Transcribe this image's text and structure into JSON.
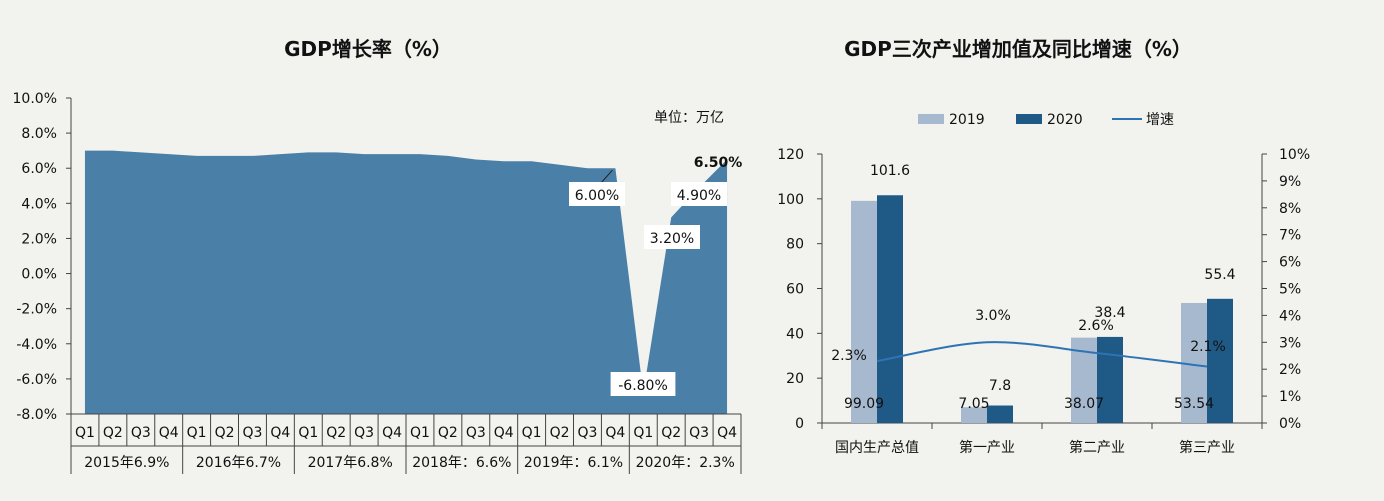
{
  "chart_data": [
    {
      "type": "area",
      "title": "GDP增长率（%）",
      "unit_note": "单位：万亿",
      "ylim": [
        -8.0,
        10.0
      ],
      "y_ticks": [
        "10.0%",
        "8.0%",
        "6.0%",
        "4.0%",
        "2.0%",
        "0.0%",
        "-2.0%",
        "-4.0%",
        "-6.0%",
        "-8.0%"
      ],
      "quarters": [
        "Q1",
        "Q2",
        "Q3",
        "Q4",
        "Q1",
        "Q2",
        "Q3",
        "Q4",
        "Q1",
        "Q2",
        "Q3",
        "Q4",
        "Q1",
        "Q2",
        "Q3",
        "Q4",
        "Q1",
        "Q2",
        "Q3",
        "Q4",
        "Q1",
        "Q2",
        "Q3",
        "Q4"
      ],
      "groups": [
        "2015年6.9%",
        "2016年6.7%",
        "2017年6.8%",
        "2018年：6.6%",
        "2019年：6.1%",
        "2020年：2.3%"
      ],
      "values": [
        7.0,
        7.0,
        6.9,
        6.8,
        6.7,
        6.7,
        6.7,
        6.8,
        6.9,
        6.9,
        6.8,
        6.8,
        6.8,
        6.7,
        6.5,
        6.4,
        6.4,
        6.2,
        6.0,
        6.0,
        -6.8,
        3.2,
        4.9,
        6.5
      ],
      "data_labels": [
        {
          "index": 19,
          "text": "6.00%"
        },
        {
          "index": 20,
          "text": "-6.80%"
        },
        {
          "index": 21,
          "text": "3.20%"
        },
        {
          "index": 22,
          "text": "4.90%"
        },
        {
          "index": 23,
          "text": "6.50%"
        }
      ],
      "colors": {
        "area": "#4a7fa8",
        "highlight_label": "#e0201c"
      }
    },
    {
      "type": "bar",
      "title": "GDP三次产业增加值及同比增速（%）",
      "categories": [
        "国内生产总值",
        "第一产业",
        "第二产业",
        "第三产业"
      ],
      "ylim": [
        0,
        120
      ],
      "y_ticks": [
        "120",
        "100",
        "80",
        "60",
        "40",
        "20",
        "0"
      ],
      "y2lim": [
        0,
        10
      ],
      "y2_ticks": [
        "10%",
        "9%",
        "8%",
        "7%",
        "6%",
        "5%",
        "4%",
        "3%",
        "2%",
        "1%",
        "0%"
      ],
      "series": [
        {
          "name": "2019",
          "values": [
            99.09,
            7.05,
            38.07,
            53.54
          ],
          "labels": [
            "99.09",
            "7.05",
            "38.07",
            "53.54"
          ],
          "color": "#a7b9cf"
        },
        {
          "name": "2020",
          "values": [
            101.6,
            7.8,
            38.4,
            55.4
          ],
          "labels": [
            "101.6",
            "7.8",
            "38.4",
            "55.4"
          ],
          "color": "#1f5a86"
        }
      ],
      "line": {
        "name": "增速",
        "values": [
          2.3,
          3.0,
          2.6,
          2.1
        ],
        "labels": [
          "2.3%",
          "3.0%",
          "2.6%",
          "2.1%"
        ],
        "color": "#2e74b5",
        "label_color": "#e0201c"
      },
      "legend_position": "top"
    }
  ]
}
